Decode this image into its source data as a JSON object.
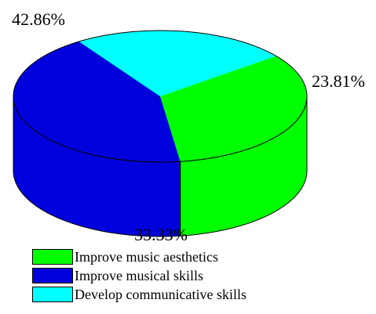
{
  "chart_data": {
    "type": "pie",
    "style": "3d",
    "labels": [
      "Improve music aesthetics",
      "Improve musical skills",
      "Develop communicative skills"
    ],
    "values": [
      33.33,
      42.86,
      23.81
    ],
    "value_labels": [
      "33.33%",
      "42.86%",
      "23.81%"
    ],
    "colors": [
      "#00ff00",
      "#0000dd",
      "#00ffff"
    ],
    "legend_position": "bottom"
  }
}
